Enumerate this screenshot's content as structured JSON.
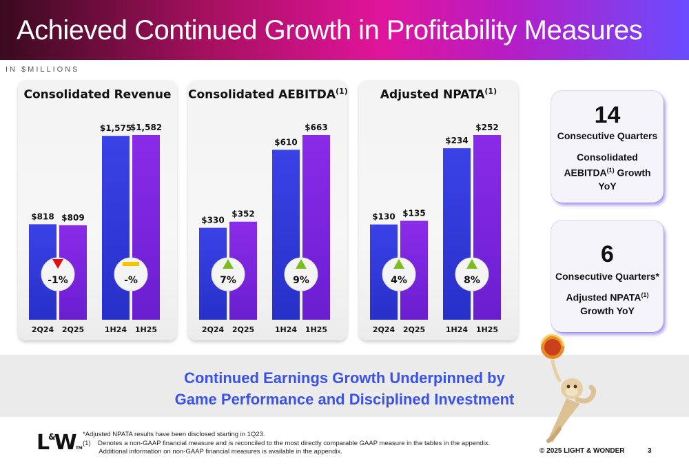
{
  "header": {
    "title": "Achieved Continued Growth in Profitability Measures",
    "units": "IN $MILLIONS"
  },
  "chart_data": [
    {
      "type": "bar",
      "title": "Consolidated Revenue",
      "title_sup": "",
      "categories": [
        "2Q24",
        "2Q25",
        "1H24",
        "1H25"
      ],
      "values": [
        818,
        809,
        1575,
        1582
      ],
      "value_labels": [
        "$818",
        "$809",
        "$1,575",
        "$1,582"
      ],
      "changes": [
        {
          "label": "-1%",
          "direction": "down"
        },
        {
          "label": "-%",
          "direction": "flat"
        }
      ]
    },
    {
      "type": "bar",
      "title": "Consolidated AEBITDA",
      "title_sup": "(1)",
      "categories": [
        "2Q24",
        "2Q25",
        "1H24",
        "1H25"
      ],
      "values": [
        330,
        352,
        610,
        663
      ],
      "value_labels": [
        "$330",
        "$352",
        "$610",
        "$663"
      ],
      "changes": [
        {
          "label": "7%",
          "direction": "up"
        },
        {
          "label": "9%",
          "direction": "up"
        }
      ]
    },
    {
      "type": "bar",
      "title": "Adjusted NPATA",
      "title_sup": "(1)",
      "categories": [
        "2Q24",
        "2Q25",
        "1H24",
        "1H25"
      ],
      "values": [
        130,
        135,
        234,
        252
      ],
      "value_labels": [
        "$130",
        "$135",
        "$234",
        "$252"
      ],
      "changes": [
        {
          "label": "4%",
          "direction": "up"
        },
        {
          "label": "8%",
          "direction": "up"
        }
      ]
    }
  ],
  "stats": [
    {
      "number": "14",
      "line1": "Consecutive Quarters",
      "line2": "Consolidated",
      "line3a": "AEBITDA",
      "line3sup": "(1)",
      "line3b": " Growth",
      "line4": "YoY"
    },
    {
      "number": "6",
      "line1": "Consecutive Quarters*",
      "line2a": "Adjusted NPATA",
      "line2sup": "(1)",
      "line3": "Growth YoY"
    }
  ],
  "band": {
    "line1": "Continued Earnings Growth Underpinned by",
    "line2": "Game Performance and Disciplined Investment"
  },
  "footer": {
    "logo_l": "L",
    "logo_amp": "&",
    "logo_w": "W",
    "logo_tm": "TM",
    "note1": "*Adjusted NPATA results have been disclosed starting in 1Q23.",
    "note2": "(1)    Denotes a non-GAAP financial measure and is reconciled to the most directly comparable GAAP measure in the tables in the appendix.",
    "note3": "         Additional information on non-GAAP financial measures is available in the appendix.",
    "copyright": "© 2025 LIGHT & WONDER",
    "page": "3"
  },
  "colors": {
    "bar_prior": "#3a42e6",
    "bar_current": "#8a2be8",
    "up": "#7cbd1e",
    "down": "#e01010",
    "flat": "#f5c400",
    "accent": "#3b52e8"
  }
}
